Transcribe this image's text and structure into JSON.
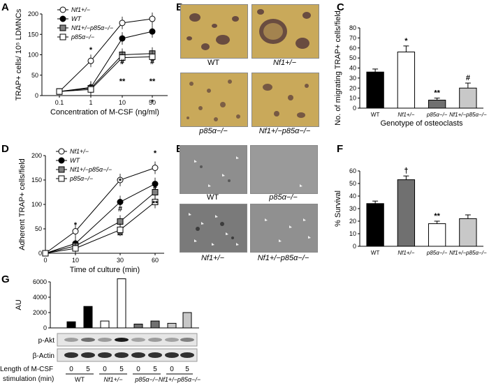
{
  "panels": {
    "A": "A",
    "B": "B",
    "C": "C",
    "D": "D",
    "E": "E",
    "F": "F",
    "G": "G"
  },
  "micrographs_B": [
    "WT",
    "Nf1+/−",
    "p85α−/−",
    "Nf1+/−p85α−/−"
  ],
  "micrographs_E": [
    "WT",
    "p85α−/−",
    "Nf1+/−",
    "Nf1+/−p85α−/−"
  ],
  "colors": {
    "wt": "#000000",
    "nf1": "#ffffff",
    "p85": "#707070",
    "double": "#c8c8c8",
    "stain": "#c9a95a"
  },
  "chart_data": [
    {
      "id": "A",
      "type": "line",
      "ylabel": "TRAP+ cells/ 10⁵ LDMNCs",
      "xlabel": "Concentration of M-CSF (ng/ml)",
      "x": [
        "0.1",
        "1",
        "10",
        "50"
      ],
      "ylim": [
        0,
        200
      ],
      "yticks": [
        0,
        50,
        100,
        150,
        200
      ],
      "series": [
        {
          "name": "Nf1+/−",
          "marker": "open-circle",
          "values": [
            10,
            85,
            178,
            188
          ]
        },
        {
          "name": "WT",
          "marker": "filled-circle",
          "values": [
            10,
            20,
            140,
            157
          ]
        },
        {
          "name": "Nf1+/−p85α−/−",
          "marker": "gray-square",
          "values": [
            10,
            18,
            100,
            103
          ]
        },
        {
          "name": "p85α−/−",
          "marker": "open-square",
          "values": [
            10,
            15,
            93,
            95
          ]
        }
      ],
      "annotations": [
        "*",
        "*",
        "#",
        "**",
        "*",
        "#",
        "**"
      ]
    },
    {
      "id": "C",
      "type": "bar",
      "ylabel": "No. of migrating TRAP+ cells/field",
      "xlabel": "Genotype of osteoclasts",
      "categories": [
        "WT",
        "Nf1+/−",
        "p85α−/−",
        "Nf1+/−p85α−/−"
      ],
      "values": [
        36,
        56,
        8,
        20
      ],
      "errors": [
        3,
        6,
        2,
        5
      ],
      "ylim": [
        0,
        80
      ],
      "yticks": [
        0,
        10,
        20,
        30,
        40,
        50,
        60,
        70,
        80
      ],
      "annotations": [
        "",
        "*",
        "**",
        "#"
      ]
    },
    {
      "id": "D",
      "type": "line",
      "ylabel": "Adherent TRAP+ cells/field",
      "xlabel": "Time of culture (min)",
      "x": [
        0,
        10,
        30,
        60
      ],
      "ylim": [
        0,
        200
      ],
      "yticks": [
        0,
        50,
        100,
        150,
        200
      ],
      "xticks": [
        0,
        10,
        30,
        60
      ],
      "series": [
        {
          "name": "Nf1+/−",
          "marker": "open-circle",
          "values": [
            0,
            45,
            150,
            175
          ]
        },
        {
          "name": "WT",
          "marker": "filled-circle",
          "values": [
            0,
            20,
            105,
            142
          ]
        },
        {
          "name": "Nf1+/−p85α−/−",
          "marker": "gray-square",
          "values": [
            0,
            15,
            65,
            125
          ]
        },
        {
          "name": "p85α−/−",
          "marker": "open-square",
          "values": [
            0,
            10,
            48,
            105
          ]
        }
      ],
      "annotations": [
        "*",
        "*",
        "#",
        "**",
        "*",
        "#",
        "**"
      ]
    },
    {
      "id": "F",
      "type": "bar",
      "ylabel": "% Survival",
      "categories": [
        "WT",
        "Nf1+/−",
        "p85α−/−",
        "Nf1+/−p85α−/−"
      ],
      "values": [
        34,
        53,
        18,
        22
      ],
      "errors": [
        2,
        3,
        2,
        3
      ],
      "ylim": [
        0,
        60
      ],
      "yticks": [
        0,
        10,
        20,
        30,
        40,
        50,
        60
      ],
      "annotations": [
        "",
        "†",
        "**",
        ""
      ]
    },
    {
      "id": "G",
      "type": "bar",
      "ylabel": "AU",
      "ylim": [
        0,
        6000
      ],
      "yticks": [
        0,
        2000,
        4000,
        6000
      ],
      "values": [
        800,
        2800,
        900,
        6400,
        500,
        900,
        600,
        2000
      ],
      "lanes": [
        "0",
        "5",
        "0",
        "5",
        "0",
        "5",
        "0",
        "5"
      ],
      "groups": [
        "WT",
        "Nf1+/−",
        "p85α−/−",
        "Nf1+/−p85α−/−"
      ],
      "blots": [
        "p-Akt",
        "β-Actin"
      ],
      "lane_axis_label": [
        "Length of M-CSF",
        "stimulation (min)"
      ]
    }
  ]
}
